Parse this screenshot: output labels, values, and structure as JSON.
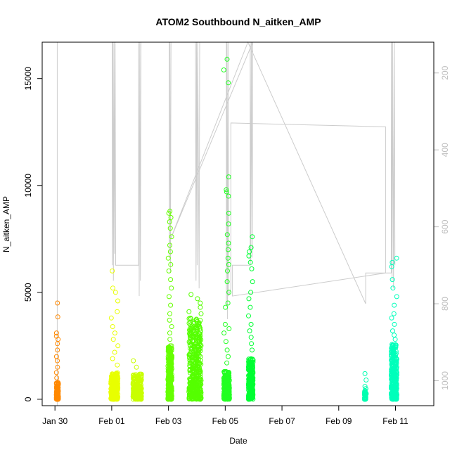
{
  "chart_data": {
    "type": "scatter",
    "title": "ATOM2 Southbound N_aitken_AMP",
    "xlabel": "Date",
    "ylabel": "N_aitken_AMP",
    "x_unit": "days since Jan 28 00:00",
    "xlim": [
      1.55,
      15.35
    ],
    "ylim": [
      -300,
      16700
    ],
    "y_ticks": [
      0,
      5000,
      10000,
      15000
    ],
    "x_ticks": [
      {
        "label": "Jan 30",
        "value": 2
      },
      {
        "label": "Feb 01",
        "value": 4
      },
      {
        "label": "Feb 03",
        "value": 6
      },
      {
        "label": "Feb 05",
        "value": 8
      },
      {
        "label": "Feb 07",
        "value": 10
      },
      {
        "label": "Feb 09",
        "value": 12
      },
      {
        "label": "Feb 11",
        "value": 14
      }
    ],
    "right_axis": {
      "label": "",
      "ticks": [
        200,
        400,
        600,
        800,
        1000
      ],
      "range_top": 120,
      "range_bottom": 1065,
      "color": "#bdbdbd"
    },
    "grid": false,
    "legend": "none",
    "clusters": [
      {
        "x0": 2.05,
        "x1": 2.12,
        "color": "#ff8800",
        "low_max": 800,
        "high": [
          4500,
          3850,
          3100,
          2950,
          2800,
          2600,
          2300,
          2000,
          1800,
          1500,
          1250,
          1000
        ],
        "n_low": 140
      },
      {
        "x0": 3.97,
        "x1": 4.22,
        "color": "#e8ff00",
        "low_max": 1250,
        "high": [
          6000,
          5200,
          5000,
          4600,
          4100,
          3800,
          3400,
          3100,
          2800,
          2500,
          2200,
          1900,
          1600
        ],
        "n_low": 260
      },
      {
        "x0": 4.75,
        "x1": 5.05,
        "color": "#c8ff00",
        "low_max": 1200,
        "high": [
          1800,
          1500
        ],
        "n_low": 220
      },
      {
        "x0": 5.98,
        "x1": 6.12,
        "color": "#66ff00",
        "low_max": 2500,
        "high": [
          8800,
          8700,
          8500,
          8300,
          8000,
          7600,
          7200,
          6900,
          6600,
          6300,
          6000,
          5600,
          5200,
          4800,
          4400,
          4000,
          3700,
          3400,
          3100,
          2800
        ],
        "n_low": 300
      },
      {
        "x0": 6.72,
        "x1": 7.15,
        "color": "#55ff00",
        "low_max": 3800,
        "high": [
          4900,
          4700,
          4500,
          4300,
          4100,
          4000
        ],
        "n_low": 420
      },
      {
        "x0": 7.95,
        "x1": 8.15,
        "color": "#22ff22",
        "low_max": 1300,
        "high": [
          15900,
          15400,
          14800,
          10400,
          9800,
          9700,
          9500,
          8700,
          8200,
          7700,
          7300,
          7000,
          6600,
          6300,
          6000,
          5500,
          5000,
          4500,
          4300,
          3500,
          3300,
          3100,
          2700,
          2300,
          2000,
          1700
        ],
        "n_low": 260
      },
      {
        "x0": 8.82,
        "x1": 8.98,
        "color": "#00ff33",
        "low_max": 1900,
        "high": [
          7600,
          7100,
          6900,
          6700,
          6400,
          6100,
          5500,
          5000,
          4700,
          4300,
          3900,
          3500,
          3200,
          2900,
          2600,
          2300
        ],
        "n_low": 260
      },
      {
        "x0": 12.9,
        "x1": 12.97,
        "color": "#00ffb0",
        "low_max": 500,
        "high": [
          1200,
          900,
          600
        ],
        "n_low": 40
      },
      {
        "x0": 13.85,
        "x1": 14.05,
        "color": "#00ffbb",
        "low_max": 2600,
        "high": [
          6600,
          6400,
          6200,
          5600,
          5200,
          4800,
          4400,
          4000,
          3800,
          3500,
          3200,
          3000,
          2800
        ],
        "n_low": 300
      }
    ],
    "series": [
      {
        "color": "#cccccc",
        "path_right_axis": [
          [
            2.08,
            1065
          ],
          [
            2.08,
            120
          ],
          [
            2.08,
            300
          ],
          [
            2.08,
            120
          ],
          [
            4.02,
            120
          ],
          [
            4.02,
            700
          ],
          [
            4.04,
            120
          ],
          [
            4.06,
            740
          ],
          [
            4.08,
            120
          ],
          [
            4.1,
            670
          ],
          [
            4.12,
            120
          ],
          [
            4.14,
            700
          ],
          [
            4.95,
            700
          ],
          [
            4.95,
            120
          ],
          [
            4.97,
            780
          ],
          [
            4.99,
            120
          ],
          [
            5.01,
            740
          ],
          [
            5.03,
            120
          ],
          [
            6.03,
            120
          ],
          [
            6.03,
            680
          ],
          [
            6.05,
            120
          ],
          [
            6.07,
            720
          ],
          [
            6.09,
            120
          ],
          [
            6.95,
            120
          ],
          [
            6.97,
            740
          ],
          [
            6.99,
            120
          ],
          [
            7.01,
            700
          ],
          [
            7.03,
            120
          ],
          [
            7.08,
            760
          ],
          [
            7.1,
            120
          ],
          [
            8.04,
            120
          ],
          [
            8.04,
            800
          ],
          [
            8.06,
            120
          ],
          [
            8.08,
            840
          ],
          [
            8.1,
            120
          ],
          [
            8.12,
            780
          ],
          [
            8.2,
            760
          ],
          [
            8.2,
            330
          ],
          [
            13.65,
            340
          ],
          [
            13.65,
            720
          ],
          [
            8.25,
            780
          ],
          [
            8.25,
            700
          ],
          [
            8.88,
            700
          ],
          [
            8.88,
            120
          ],
          [
            8.9,
            690
          ],
          [
            8.92,
            120
          ],
          [
            8.95,
            680
          ],
          [
            8.97,
            120
          ],
          [
            6.03,
            640
          ],
          [
            8.8,
            120
          ],
          [
            12.95,
            800
          ],
          [
            12.95,
            720
          ],
          [
            13.85,
            720
          ],
          [
            13.85,
            120
          ],
          [
            13.88,
            740
          ],
          [
            13.9,
            120
          ],
          [
            13.93,
            760
          ],
          [
            13.96,
            120
          ],
          [
            13.98,
            700
          ]
        ]
      }
    ]
  }
}
